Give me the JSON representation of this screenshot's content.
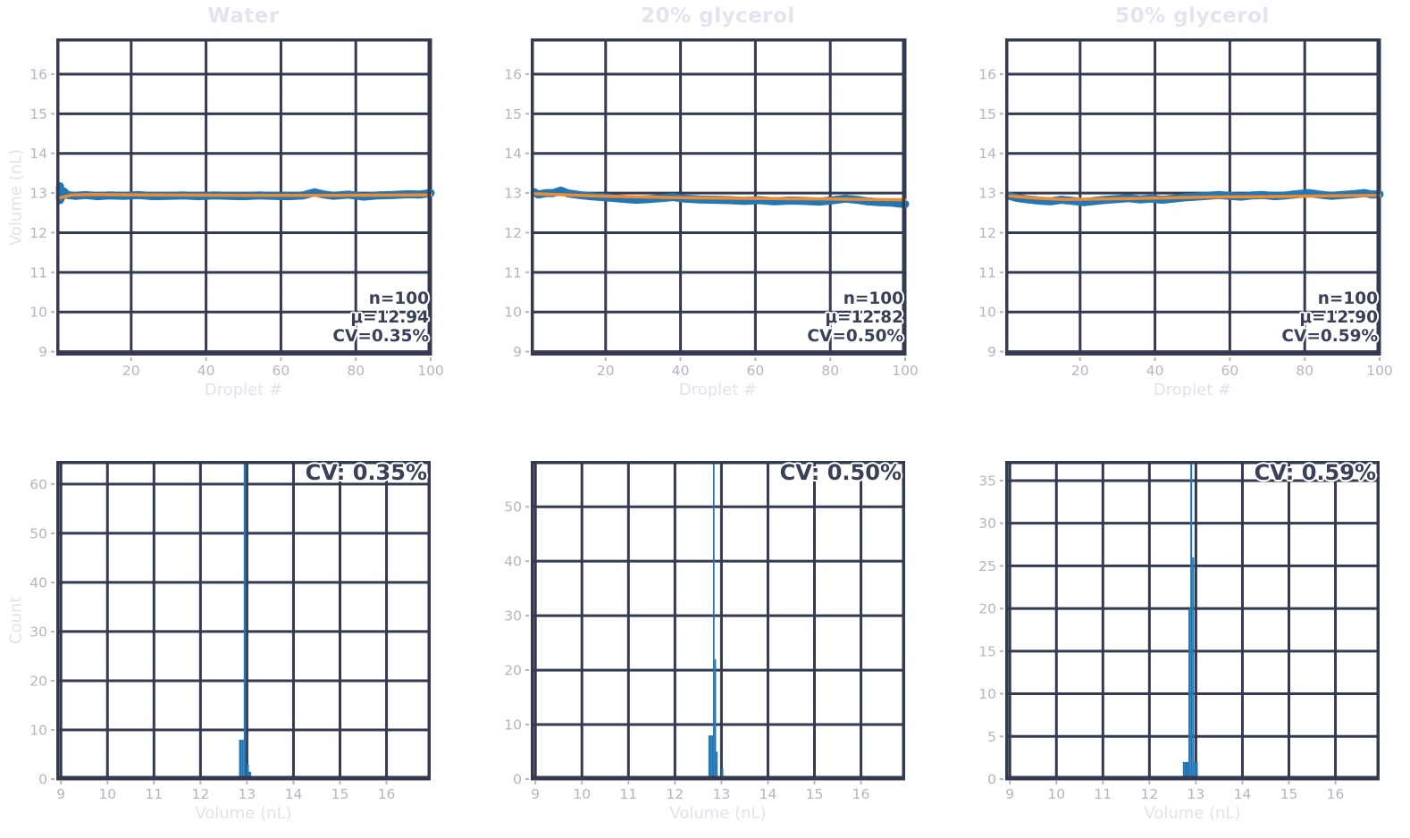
{
  "style": {
    "background": "#ffffff",
    "grid_color": "#343a50",
    "frame_color": "#343a50",
    "tick_color": "#b4b4c8",
    "tick_label_color": "#b4b4c8",
    "title_color": "#e4e4f0",
    "axis_label_color": "#e2e2ee",
    "annotation_color": "#3a4156",
    "blue": "#2277b4",
    "orange": "#f28a2e"
  },
  "chart_data": [
    {
      "type": "line",
      "title": "Water",
      "xlabel": "Droplet #",
      "ylabel": "Volume (nL)",
      "xlim": [
        0,
        100
      ],
      "ylim": [
        8.9,
        16.9
      ],
      "xticks": [
        20,
        40,
        60,
        80,
        100
      ],
      "yticks": [
        9,
        10,
        11,
        12,
        13,
        14,
        15,
        16
      ],
      "grid": true,
      "annotation": {
        "lines": [
          "n=100",
          "μ=12.94",
          "CV=0.35%"
        ],
        "position": "bottom-right"
      },
      "series": [
        {
          "name": "droplet-volume",
          "color": "#2277b4",
          "width": 9,
          "x": [
            1,
            1,
            2,
            3,
            5,
            8,
            11,
            14,
            18,
            22,
            26,
            30,
            34,
            38,
            42,
            46,
            50,
            54,
            58,
            62,
            66,
            69,
            71,
            74,
            78,
            82,
            86,
            90,
            94,
            97,
            100
          ],
          "y": [
            13.17,
            12.82,
            13.04,
            12.95,
            12.93,
            12.95,
            12.92,
            12.94,
            12.93,
            12.95,
            12.92,
            12.93,
            12.94,
            12.92,
            12.94,
            12.93,
            12.92,
            12.94,
            12.93,
            12.92,
            12.94,
            13.02,
            12.97,
            12.93,
            12.96,
            12.91,
            12.94,
            12.95,
            12.97,
            12.96,
            13.0
          ]
        },
        {
          "name": "trend",
          "color": "#f28a2e",
          "width": 3.5,
          "x": [
            1,
            4,
            10,
            25,
            50,
            75,
            100
          ],
          "y": [
            12.88,
            12.95,
            12.96,
            12.95,
            12.94,
            12.94,
            12.95
          ]
        }
      ]
    },
    {
      "type": "line",
      "title": "20% glycerol",
      "xlabel": "Droplet #",
      "ylabel": null,
      "xlim": [
        0,
        100
      ],
      "ylim": [
        8.9,
        16.9
      ],
      "xticks": [
        20,
        40,
        60,
        80,
        100
      ],
      "yticks": [
        9,
        10,
        11,
        12,
        13,
        14,
        15,
        16
      ],
      "grid": true,
      "annotation": {
        "lines": [
          "n=100",
          "μ=12.82",
          "CV=0.50%"
        ],
        "position": "bottom-right"
      },
      "series": [
        {
          "name": "droplet-volume",
          "color": "#2277b4",
          "width": 9,
          "x": [
            1,
            2,
            4,
            6,
            8,
            10,
            13,
            16,
            20,
            24,
            28,
            32,
            36,
            38,
            41,
            45,
            49,
            53,
            57,
            61,
            65,
            69,
            73,
            77,
            81,
            84,
            87,
            90,
            93,
            96,
            100
          ],
          "y": [
            13.02,
            12.96,
            13.0,
            13.0,
            13.06,
            12.99,
            12.95,
            12.92,
            12.89,
            12.86,
            12.83,
            12.85,
            12.88,
            12.9,
            12.86,
            12.84,
            12.83,
            12.82,
            12.8,
            12.82,
            12.79,
            12.81,
            12.8,
            12.78,
            12.82,
            12.86,
            12.83,
            12.79,
            12.77,
            12.76,
            12.72
          ]
        },
        {
          "name": "trend",
          "color": "#f28a2e",
          "width": 3.5,
          "x": [
            1,
            10,
            20,
            35,
            50,
            65,
            80,
            100
          ],
          "y": [
            12.98,
            12.95,
            12.92,
            12.89,
            12.87,
            12.86,
            12.85,
            12.83
          ]
        }
      ]
    },
    {
      "type": "line",
      "title": "50% glycerol",
      "xlabel": "Droplet #",
      "ylabel": null,
      "xlim": [
        0,
        100
      ],
      "ylim": [
        8.9,
        16.9
      ],
      "xticks": [
        20,
        40,
        60,
        80,
        100
      ],
      "yticks": [
        9,
        10,
        11,
        12,
        13,
        14,
        15,
        16
      ],
      "grid": true,
      "annotation": {
        "lines": [
          "n=100",
          "μ=12.90",
          "CV=0.59%"
        ],
        "position": "bottom-right"
      },
      "series": [
        {
          "name": "droplet-volume",
          "color": "#2277b4",
          "width": 9,
          "x": [
            1,
            3,
            6,
            9,
            12,
            15,
            18,
            21,
            24,
            27,
            30,
            33,
            36,
            39,
            42,
            45,
            48,
            51,
            54,
            57,
            60,
            63,
            66,
            69,
            72,
            75,
            78,
            81,
            84,
            87,
            90,
            93,
            96,
            98,
            100
          ],
          "y": [
            12.93,
            12.88,
            12.84,
            12.81,
            12.79,
            12.83,
            12.8,
            12.77,
            12.8,
            12.83,
            12.85,
            12.87,
            12.84,
            12.86,
            12.83,
            12.86,
            12.89,
            12.91,
            12.93,
            12.95,
            12.93,
            12.91,
            12.94,
            12.95,
            12.92,
            12.94,
            12.97,
            13.0,
            12.96,
            12.93,
            12.95,
            12.97,
            13.0,
            12.96,
            12.97
          ]
        },
        {
          "name": "trend",
          "color": "#f28a2e",
          "width": 3.5,
          "x": [
            1,
            8,
            16,
            25,
            40,
            55,
            70,
            85,
            100
          ],
          "y": [
            12.93,
            12.87,
            12.84,
            12.85,
            12.87,
            12.9,
            12.91,
            12.93,
            12.94
          ]
        }
      ]
    },
    {
      "type": "bar",
      "title": null,
      "xlabel": "Volume (nL)",
      "ylabel": "Count",
      "xlim": [
        8.9,
        16.95
      ],
      "ylim": [
        0,
        64.7
      ],
      "xticks": [
        9,
        10,
        11,
        12,
        13,
        14,
        15,
        16
      ],
      "yticks": [
        0,
        10,
        20,
        30,
        40,
        50,
        60
      ],
      "grid": true,
      "annotation": {
        "lines": [
          "CV: 0.35%"
        ],
        "position": "top-right"
      },
      "bar_color": "#2277b4",
      "bars": [
        {
          "x": 12.83,
          "w": 0.05,
          "h": 8
        },
        {
          "x": 12.88,
          "w": 0.05,
          "h": 8
        },
        {
          "x": 12.93,
          "w": 0.05,
          "h": 64.7
        },
        {
          "x": 12.99,
          "w": 0.05,
          "h": 3
        },
        {
          "x": 13.04,
          "w": 0.05,
          "h": 1.5
        }
      ]
    },
    {
      "type": "bar",
      "title": null,
      "xlabel": "Volume (nL)",
      "ylabel": null,
      "xlim": [
        8.9,
        16.95
      ],
      "ylim": [
        0,
        58.4
      ],
      "xticks": [
        9,
        10,
        11,
        12,
        13,
        14,
        15,
        16
      ],
      "yticks": [
        0,
        10,
        20,
        30,
        40,
        50
      ],
      "grid": true,
      "annotation": {
        "lines": [
          "CV: 0.50%"
        ],
        "position": "top-right"
      },
      "bar_color": "#2277b4",
      "bars": [
        {
          "x": 12.72,
          "w": 0.033,
          "h": 8
        },
        {
          "x": 12.753,
          "w": 0.033,
          "h": 8
        },
        {
          "x": 12.786,
          "w": 0.033,
          "h": 8
        },
        {
          "x": 12.819,
          "w": 0.033,
          "h": 58.4
        },
        {
          "x": 12.852,
          "w": 0.033,
          "h": 22
        },
        {
          "x": 12.885,
          "w": 0.033,
          "h": 5
        },
        {
          "x": 13.0,
          "w": 0.04,
          "h": 2
        }
      ]
    },
    {
      "type": "bar",
      "title": null,
      "xlabel": "Volume (nL)",
      "ylabel": null,
      "xlim": [
        8.9,
        16.95
      ],
      "ylim": [
        0,
        37.3
      ],
      "xticks": [
        9,
        10,
        11,
        12,
        13,
        14,
        15,
        16
      ],
      "yticks": [
        0,
        5,
        10,
        15,
        20,
        25,
        30,
        35
      ],
      "grid": true,
      "annotation": {
        "lines": [
          "CV: 0.59%"
        ],
        "position": "top-right"
      },
      "bar_color": "#2277b4",
      "bars": [
        {
          "x": 12.72,
          "w": 0.04,
          "h": 2
        },
        {
          "x": 12.76,
          "w": 0.04,
          "h": 2
        },
        {
          "x": 12.8,
          "w": 0.04,
          "h": 2
        },
        {
          "x": 12.84,
          "w": 0.04,
          "h": 20
        },
        {
          "x": 12.88,
          "w": 0.04,
          "h": 37.3
        },
        {
          "x": 12.92,
          "w": 0.04,
          "h": 26
        },
        {
          "x": 12.96,
          "w": 0.04,
          "h": 2
        },
        {
          "x": 13.0,
          "w": 0.04,
          "h": 2
        }
      ]
    }
  ]
}
